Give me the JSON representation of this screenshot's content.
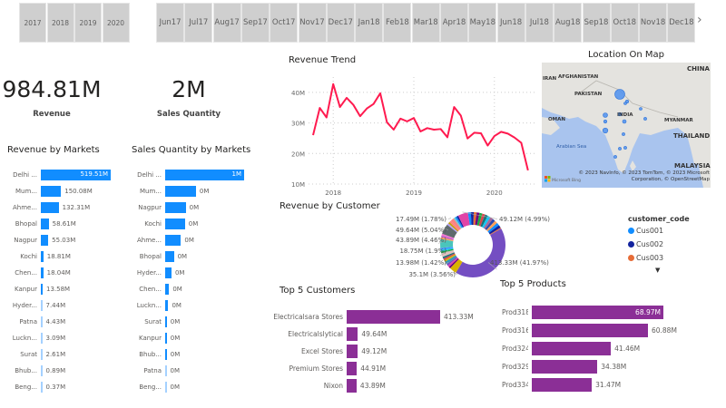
{
  "slicers": {
    "years": [
      "2017",
      "2018",
      "2019",
      "2020"
    ],
    "months": [
      [
        "Jun",
        "17"
      ],
      [
        "Jul",
        "17"
      ],
      [
        "Aug",
        "17"
      ],
      [
        "Sep",
        "17"
      ],
      [
        "Oct",
        "17"
      ],
      [
        "Nov",
        "17"
      ],
      [
        "Dec",
        "17"
      ],
      [
        "Jan",
        "18"
      ],
      [
        "Feb",
        "18"
      ],
      [
        "Mar",
        "18"
      ],
      [
        "Apr",
        "18"
      ],
      [
        "May",
        "18"
      ],
      [
        "Jun",
        "18"
      ],
      [
        "Jul",
        "18"
      ],
      [
        "Aug",
        "18"
      ],
      [
        "Sep",
        "18"
      ],
      [
        "Oct",
        "18"
      ],
      [
        "Nov",
        "18"
      ],
      [
        "Dec",
        "18"
      ]
    ],
    "next_icon": "chevron-right-icon"
  },
  "kpis": {
    "revenue": {
      "value": "984.81M",
      "label": "Revenue"
    },
    "quantity": {
      "value": "2M",
      "label": "Sales Quantity"
    }
  },
  "colors": {
    "market_bar": "#118dff",
    "top5_bar": "#8b2f96",
    "trend_line": "#ff1a4f"
  },
  "chart_data": [
    {
      "type": "bar",
      "title": "Revenue by Markets",
      "categories": [
        "Delhi ...",
        "Mum...",
        "Ahme...",
        "Bhopal",
        "Nagpur",
        "Kochi",
        "Chen...",
        "Kanpur",
        "Hyder...",
        "Patna",
        "Luckn...",
        "Surat",
        "Bhub...",
        "Beng..."
      ],
      "values": [
        519.51,
        150.08,
        132.31,
        58.61,
        55.03,
        18.81,
        18.04,
        13.58,
        7.44,
        4.43,
        3.09,
        2.61,
        0.89,
        0.37
      ],
      "labels": [
        "519.51M",
        "150.08M",
        "132.31M",
        "58.61M",
        "55.03M",
        "18.81M",
        "18.04M",
        "13.58M",
        "7.44M",
        "4.43M",
        "3.09M",
        "2.61M",
        "0.89M",
        "0.37M"
      ]
    },
    {
      "type": "bar",
      "title": "Sales Quantity by Markets",
      "categories": [
        "Delhi ...",
        "Mum...",
        "Nagpur",
        "Kochi",
        "Ahme...",
        "Bhopal",
        "Hyder...",
        "Chen...",
        "Luckn...",
        "Surat",
        "Kanpur",
        "Bhub...",
        "Patna",
        "Beng..."
      ],
      "values": [
        1,
        0.39,
        0.26,
        0.25,
        0.2,
        0.11,
        0.08,
        0.05,
        0.04,
        0.02,
        0.02,
        0.02,
        0.01,
        0.01
      ],
      "labels": [
        "1M",
        "0M",
        "0M",
        "0M",
        "0M",
        "0M",
        "0M",
        "0M",
        "0M",
        "0M",
        "0M",
        "0M",
        "0M",
        "0M"
      ]
    },
    {
      "type": "line",
      "title": "Revenue Trend",
      "x": [
        "2017-10",
        "2017-11",
        "2017-12",
        "2018-01",
        "2018-02",
        "2018-03",
        "2018-04",
        "2018-05",
        "2018-06",
        "2018-07",
        "2018-08",
        "2018-09",
        "2018-10",
        "2018-11",
        "2018-12",
        "2019-01",
        "2019-02",
        "2019-03",
        "2019-04",
        "2019-05",
        "2019-06",
        "2019-07",
        "2019-08",
        "2019-09",
        "2019-10",
        "2019-11",
        "2019-12",
        "2020-01",
        "2020-02",
        "2020-03",
        "2020-04",
        "2020-05",
        "2020-06"
      ],
      "values": [
        26.0,
        34.9,
        31.8,
        42.7,
        35.2,
        38.2,
        35.9,
        32.2,
        34.7,
        36.2,
        39.7,
        30.2,
        27.8,
        31.4,
        30.5,
        31.6,
        27.2,
        28.3,
        27.8,
        28.0,
        25.3,
        35.2,
        32.4,
        24.9,
        26.8,
        26.6,
        22.6,
        25.7,
        27.1,
        26.5,
        25.2,
        23.5,
        14.5
      ],
      "unit": "M",
      "x_ticks": [
        "2018",
        "2019",
        "2020"
      ],
      "y_ticks": [
        "10M",
        "20M",
        "30M",
        "40M"
      ],
      "ylim": [
        10,
        45
      ],
      "grid": true
    },
    {
      "type": "pie",
      "title": "Revenue by Customer",
      "donut": true,
      "slices": [
        {
          "value": 413.33,
          "label": "413.33M (41.97%)",
          "color": "#744ec2"
        },
        {
          "value": 35.1,
          "label": "35.1M (3.56%)",
          "color": "#d9b300"
        },
        {
          "value": 13.98,
          "label": "13.98M (1.42%)",
          "color": "#3599b8"
        },
        {
          "value": 18.75,
          "label": "18.75M (1.9%)",
          "color": "#dfbfbf"
        },
        {
          "value": 43.89,
          "label": "43.89M (4.46%)",
          "color": "#4ac5bb"
        },
        {
          "value": 49.64,
          "label": "49.64M (5.04%)",
          "color": "#5f6b6d"
        },
        {
          "value": 17.49,
          "label": "17.49M (1.78%)",
          "color": "#fb8281"
        },
        {
          "value": 49.12,
          "label": "49.12M (4.99%)",
          "color": "#e044a7"
        }
      ],
      "legend_title": "customer_code",
      "legend": [
        {
          "name": "Cus001",
          "color": "#118dff"
        },
        {
          "name": "Cus002",
          "color": "#12239e"
        },
        {
          "name": "Cus003",
          "color": "#e66c37"
        }
      ],
      "legend_more_icon": "caret-down-icon"
    },
    {
      "type": "bar",
      "title": "Top 5 Customers",
      "categories": [
        "Electricalsara Stores",
        "Electricalslytical",
        "Excel Stores",
        "Premium Stores",
        "Nixon"
      ],
      "values": [
        413.33,
        49.64,
        49.12,
        44.91,
        43.89
      ],
      "labels": [
        "413.33M",
        "49.64M",
        "49.12M",
        "44.91M",
        "43.89M"
      ]
    },
    {
      "type": "bar",
      "title": "Top 5 Products",
      "categories": [
        "Prod318",
        "Prod316",
        "Prod324",
        "Prod329",
        "Prod334"
      ],
      "values": [
        68.97,
        60.88,
        41.46,
        34.38,
        31.47
      ],
      "labels": [
        "68.97M",
        "60.88M",
        "41.46M",
        "34.38M",
        "31.47M"
      ]
    }
  ],
  "map": {
    "title": "Location On Map",
    "place_labels": [
      "CHINA",
      "AFGHANISTAN",
      "IRAN",
      "PAKISTAN",
      "INDIA",
      "OMAN",
      "MYANMAR",
      "THAILAND",
      "Arabian Sea",
      "MALAYSIA"
    ],
    "attribution": "© 2023 NavInfo, © 2023 TomTom, © 2023 Microsoft Corporation, © OpenStreetMap",
    "logo_text": "Microsoft Bing"
  }
}
